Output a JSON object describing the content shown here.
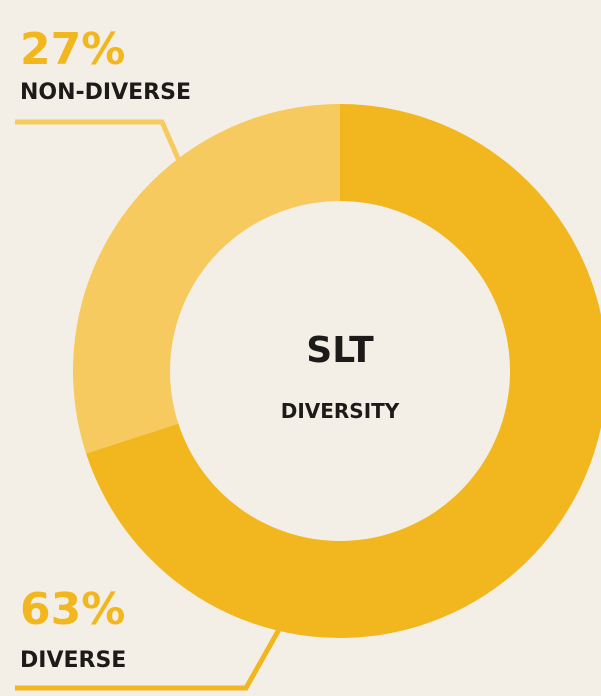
{
  "chart_data": {
    "type": "donut",
    "title": "SLT",
    "subtitle": "DIVERSITY",
    "categories": [
      "DIVERSE",
      "NON-DIVERSE"
    ],
    "values": [
      63,
      27
    ],
    "value_labels": [
      "63%",
      "27%"
    ],
    "colors": [
      "#f2b61e",
      "#f6ca5f"
    ]
  }
}
